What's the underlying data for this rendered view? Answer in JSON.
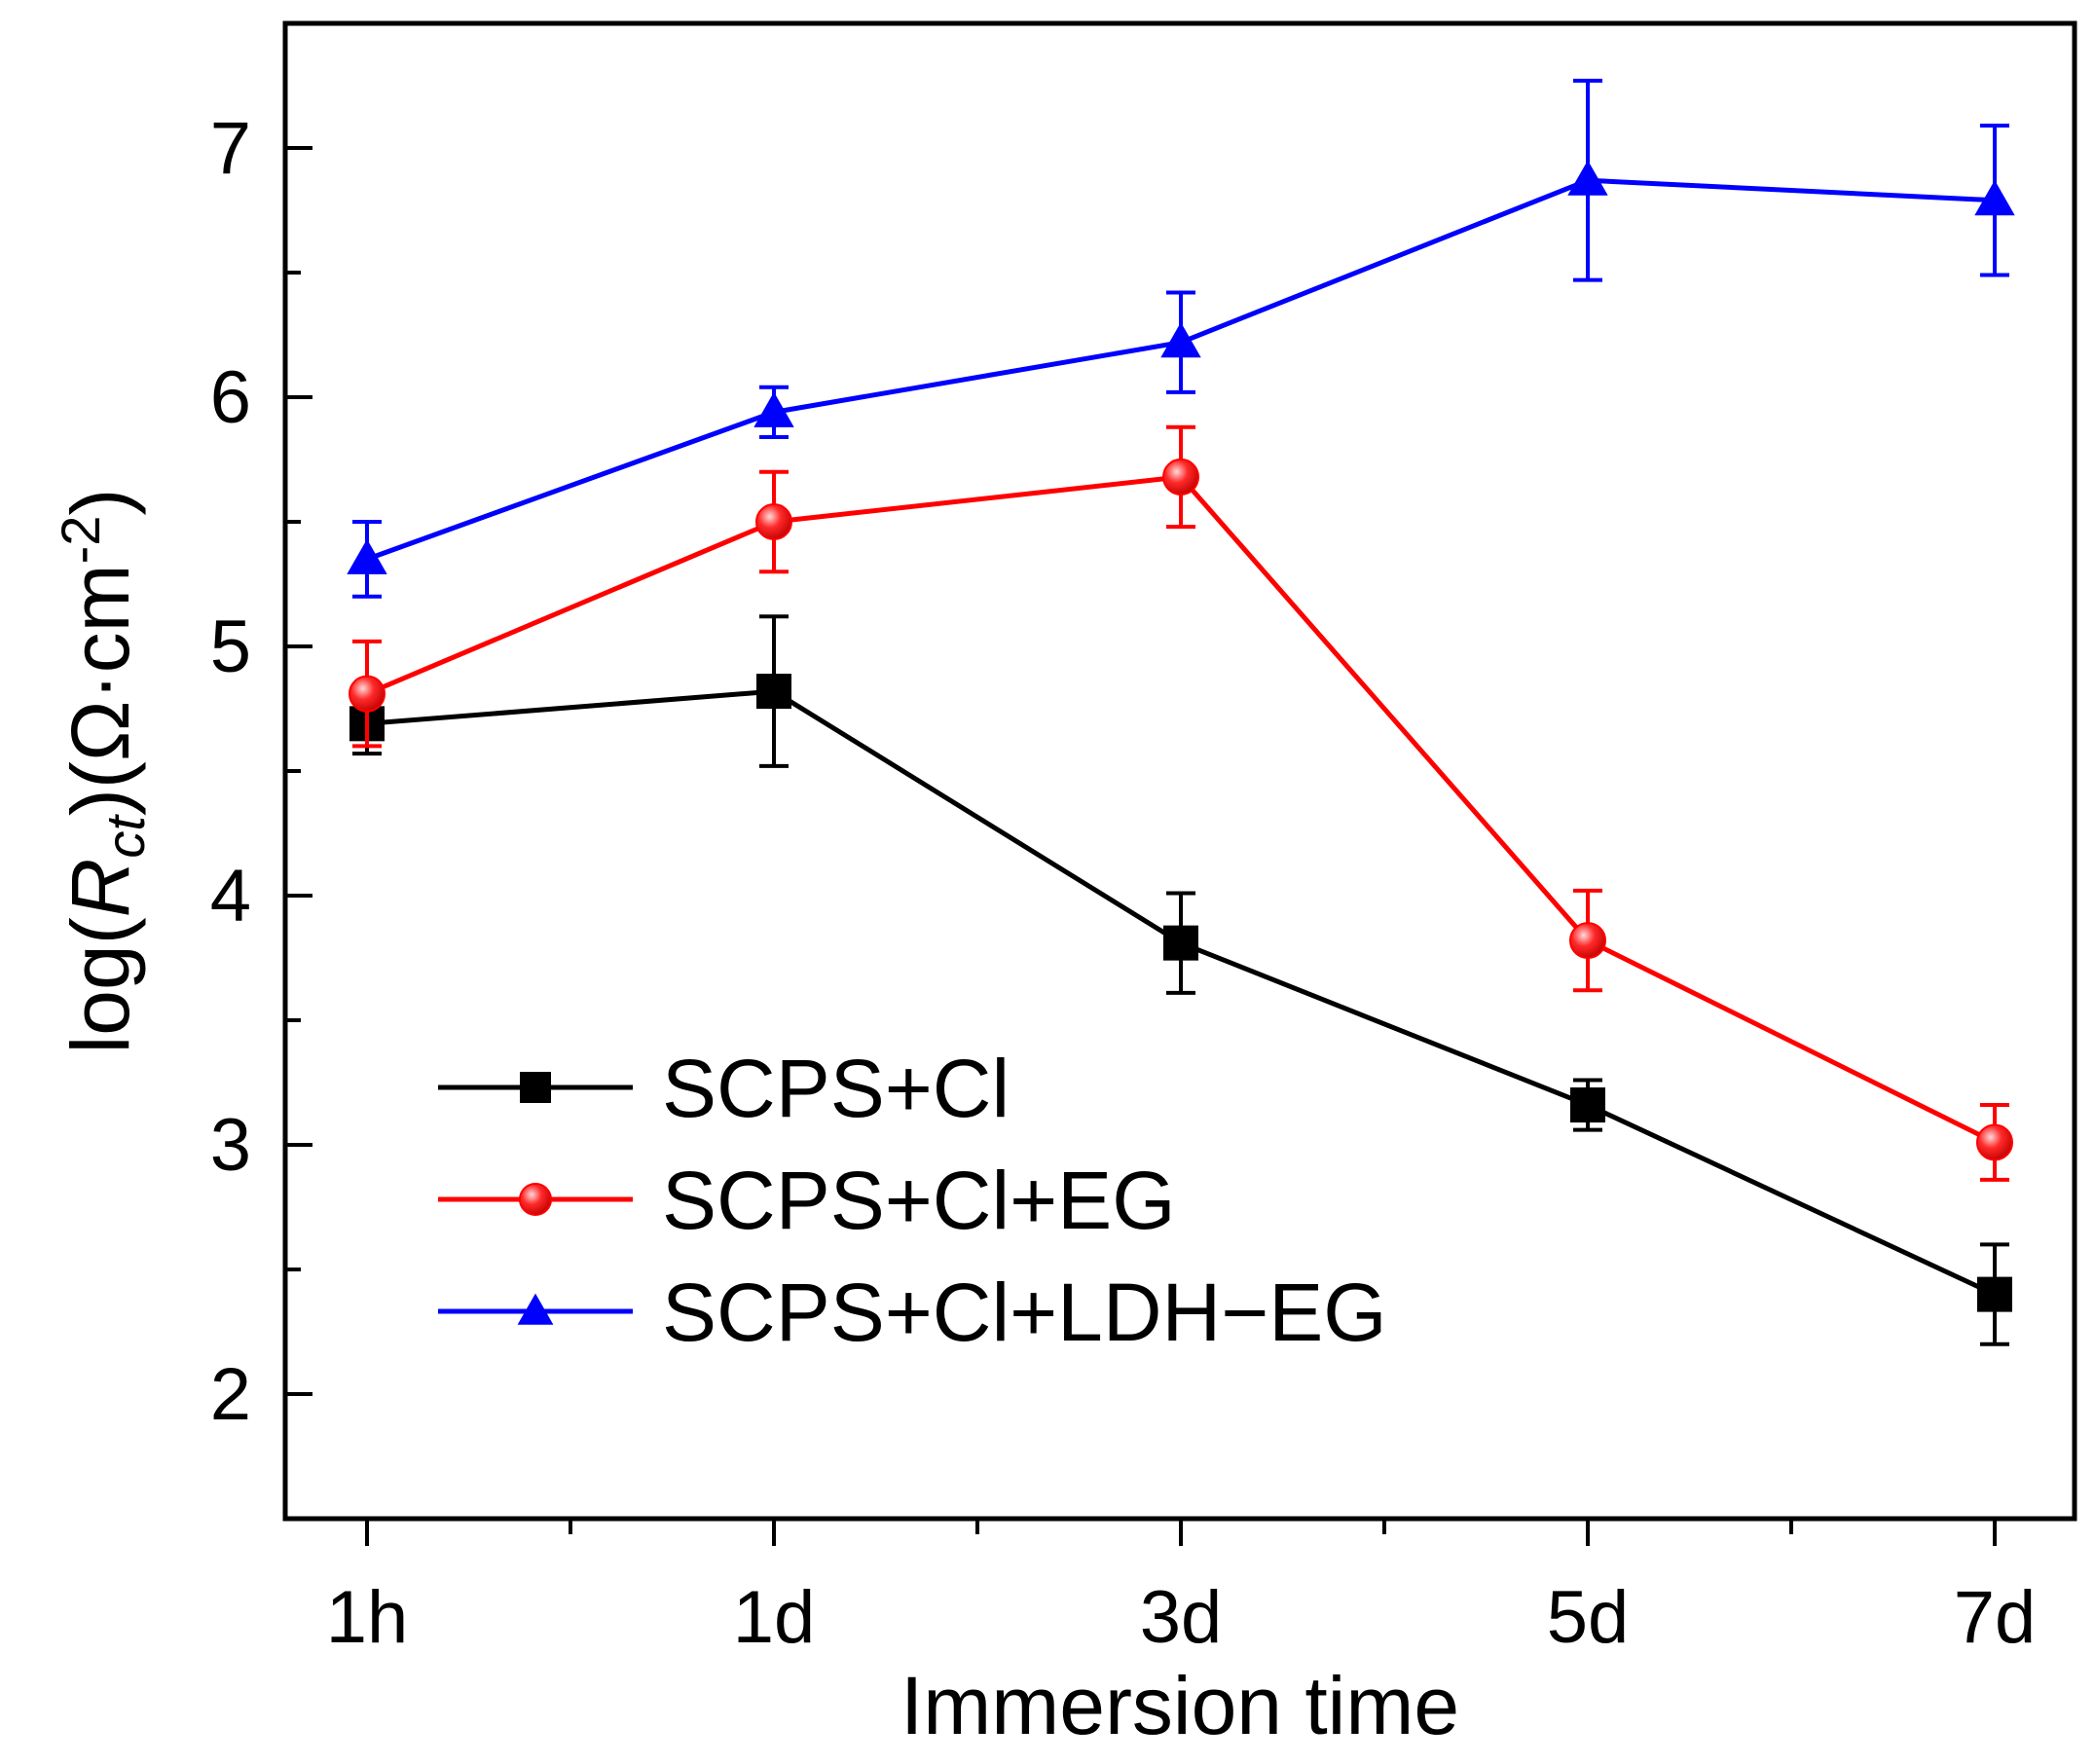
{
  "chart_data": {
    "type": "line",
    "title": "",
    "xlabel": "Immersion time",
    "ylabel": {
      "prefix": "log(",
      "symbol": "R",
      "subscript": "ct",
      "middle": ")(Ω·cm",
      "superscript": "-2",
      "suffix": ")"
    },
    "categories": [
      "1h",
      "1d",
      "3d",
      "5d",
      "7d"
    ],
    "ylim": [
      1.5,
      7.5
    ],
    "yticks": [
      2,
      3,
      4,
      5,
      6,
      7
    ],
    "legend_position": "bottom-left",
    "grid": false,
    "series": [
      {
        "name": "SCPS+Cl",
        "color": "#000000",
        "marker": "square",
        "values": [
          4.69,
          4.82,
          3.81,
          3.16,
          2.4
        ],
        "error": [
          0.12,
          0.3,
          0.2,
          0.1,
          0.2
        ]
      },
      {
        "name": "SCPS+Cl+EG",
        "color": "#ff0000",
        "marker": "circle",
        "values": [
          4.81,
          5.5,
          5.68,
          3.82,
          3.01
        ],
        "error": [
          0.21,
          0.2,
          0.2,
          0.2,
          0.15
        ]
      },
      {
        "name": "SCPS+Cl+LDH−EG",
        "color": "#0000ff",
        "marker": "triangle",
        "values": [
          5.35,
          5.94,
          6.22,
          6.87,
          6.79
        ],
        "error": [
          0.15,
          0.1,
          0.2,
          0.4,
          0.3
        ]
      }
    ]
  }
}
